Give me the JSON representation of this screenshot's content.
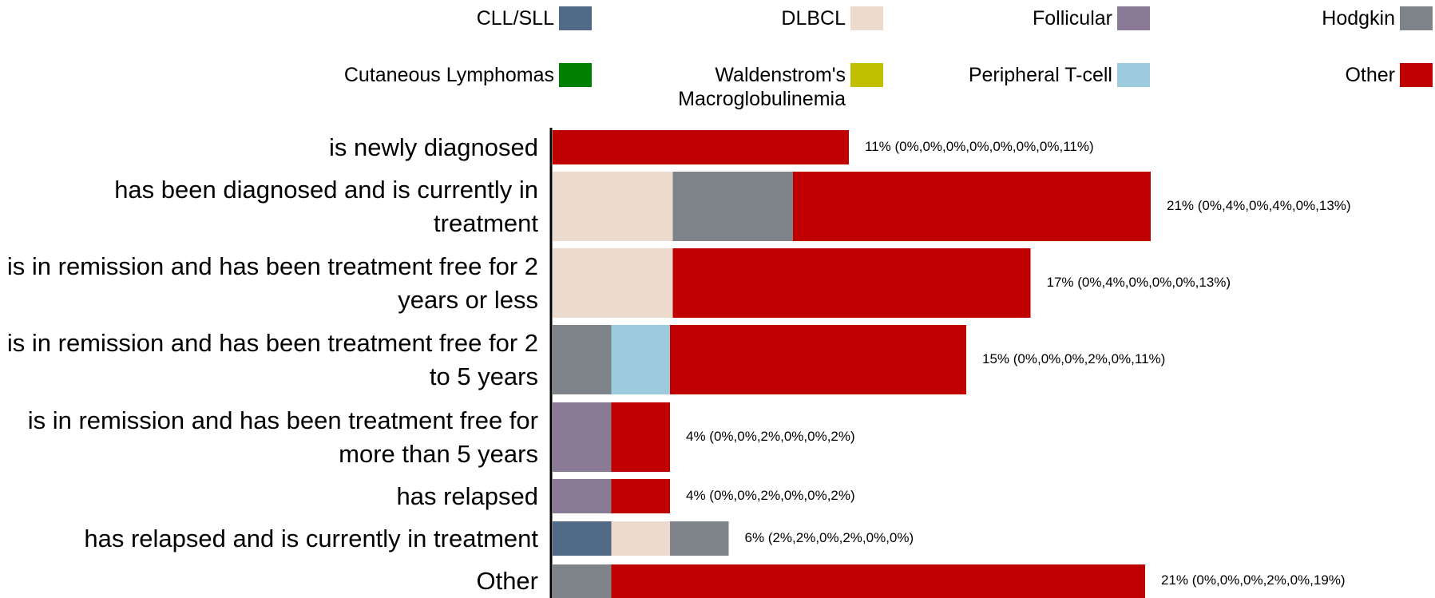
{
  "chart_data": {
    "type": "stacked-barh",
    "categories": [
      "is newly diagnosed",
      "has been diagnosed and is currently in treatment",
      "is in remission and has been treatment free for 2 years or less",
      "is in remission and has been treatment free for 2 to 5 years",
      "is in remission and has been treatment free for more than 5 years",
      "has relapsed",
      "has relapsed and is currently in treatment",
      "Other"
    ],
    "series": [
      {
        "name": "CLL/SLL",
        "color": "#506a88",
        "values": [
          0,
          0,
          0,
          0,
          0,
          0,
          2.1,
          0
        ]
      },
      {
        "name": "DLBCL",
        "color": "#ecdacc",
        "values": [
          0,
          4.3,
          4.3,
          0,
          0,
          0,
          2.1,
          0
        ]
      },
      {
        "name": "Follicular",
        "color": "#8a7a96",
        "values": [
          0,
          0,
          0,
          0,
          2.1,
          2.1,
          0,
          0
        ]
      },
      {
        "name": "Hodgkin",
        "color": "#7f848b",
        "values": [
          0,
          4.3,
          0,
          2.1,
          0,
          0,
          2.1,
          2.1
        ]
      },
      {
        "name": "Cutaneous Lymphomas",
        "color": "#008000",
        "values": [
          0,
          0,
          0,
          0,
          0,
          0,
          0,
          0
        ]
      },
      {
        "name": "Waldenstrom's Macroglobulinemia",
        "color": "#c0c000",
        "values": [
          0,
          0,
          0,
          0,
          0,
          0,
          0,
          0
        ]
      },
      {
        "name": "Peripheral T-cell",
        "color": "#9ccbdd",
        "values": [
          0,
          0,
          0,
          2.1,
          0,
          0,
          0,
          0
        ]
      },
      {
        "name": "Other",
        "color": "#c00000",
        "values": [
          10.6,
          12.8,
          12.8,
          10.6,
          2.1,
          2.1,
          0,
          19.1
        ]
      }
    ],
    "value_labels": [
      "11% (0%,0%,0%,0%,0%,0%,0%,11%)",
      "21% (0%,4%,0%,4%,0%,13%)",
      "17% (0%,4%,0%,0%,0%,13%)",
      "15% (0%,0%,0%,2%,0%,11%)",
      "4% (0%,0%,2%,0%,0%,2%)",
      "4% (0%,0%,2%,0%,0%,2%)",
      "6% (2%,2%,0%,2%,0%,0%)",
      "21% (0%,0%,0%,2%,0%,19%)"
    ]
  }
}
